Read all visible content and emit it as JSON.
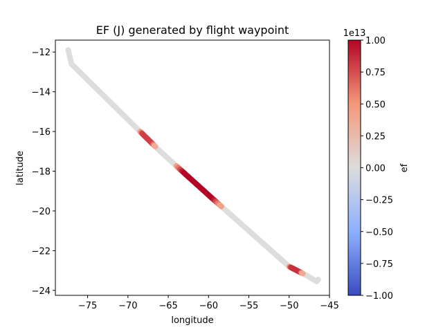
{
  "chart_data": {
    "type": "scatter",
    "title": "EF (J) generated by flight waypoint",
    "xlabel": "longitude",
    "ylabel": "latitude",
    "xlim": [
      -79,
      -45
    ],
    "ylim": [
      -24.25,
      -11.4
    ],
    "xticks": [
      -75,
      -70,
      -65,
      -60,
      -55,
      -50,
      -45
    ],
    "xtick_labels": [
      "−75",
      "−70",
      "−65",
      "−60",
      "−55",
      "−50",
      "−45"
    ],
    "yticks": [
      -24,
      -22,
      -20,
      -18,
      -16,
      -14,
      -12
    ],
    "ytick_labels": [
      "−24",
      "−22",
      "−20",
      "−18",
      "−16",
      "−14",
      "−12"
    ],
    "grid": false,
    "path": [
      [
        -77.4,
        -11.9
      ],
      [
        -77.0,
        -12.6
      ],
      [
        -72.0,
        -14.6
      ],
      [
        -66.0,
        -17.0
      ],
      [
        -60.0,
        -19.2
      ],
      [
        -50.0,
        -22.8
      ],
      [
        -47.6,
        -23.3
      ],
      [
        -46.6,
        -23.55
      ],
      [
        -46.4,
        -23.45
      ]
    ],
    "colored_segments": [
      {
        "lon_range": [
          -68.5,
          -66.6
        ],
        "ef": 0.8
      },
      {
        "lon_range": [
          -64.0,
          -58.4
        ],
        "ef": 1.0
      },
      {
        "lon_range": [
          -50.0,
          -48.3
        ],
        "ef": 0.85
      }
    ],
    "colorbar": {
      "label": "ef",
      "min": -1.0,
      "max": 1.0,
      "offset_label": "1e13",
      "colormap": "coolwarm",
      "colors": [
        "#3b4cc0",
        "#8db0fe",
        "#dddddd",
        "#f4987a",
        "#b40426"
      ],
      "ticks": [
        1.0,
        0.75,
        0.5,
        0.25,
        0.0,
        -0.25,
        -0.5,
        -0.75,
        -1.0
      ],
      "tick_labels": [
        "1.00",
        "0.75",
        "0.50",
        "0.25",
        "0.00",
        "−0.25",
        "−0.50",
        "−0.75",
        "−1.00"
      ]
    }
  }
}
